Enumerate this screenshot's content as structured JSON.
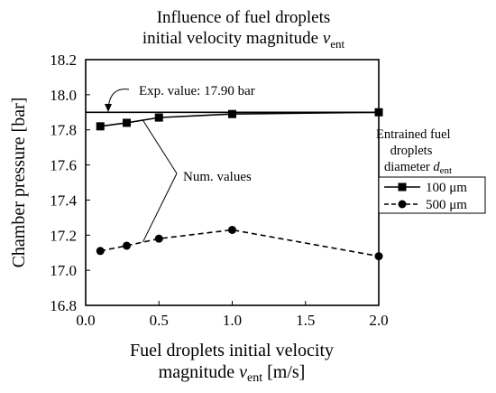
{
  "chart_data": {
    "type": "line",
    "title_line1": "Influence of fuel droplets",
    "title_line2_prefix": "initial velocity magnitude ",
    "title_line2_var": "v",
    "title_line2_sub": "ent",
    "xlabel_line1": "Fuel droplets initial velocity",
    "xlabel_line2_prefix": "magnitude ",
    "xlabel_var": "v",
    "xlabel_sub": "ent",
    "xlabel_unit": " [m/s]",
    "ylabel": "Chamber pressure [bar]",
    "xlim": [
      0.0,
      2.0
    ],
    "ylim": [
      16.8,
      18.2
    ],
    "x_ticks": [
      "0.0",
      "0.5",
      "1.0",
      "1.5",
      "2.0"
    ],
    "y_ticks": [
      "16.8",
      "17.0",
      "17.2",
      "17.4",
      "17.6",
      "17.8",
      "18.0",
      "18.2"
    ],
    "grid": false,
    "series": [
      {
        "name": "100 μm",
        "marker": "square",
        "line": "solid",
        "x": [
          0.1,
          0.28,
          0.5,
          1.0,
          2.0
        ],
        "y": [
          17.82,
          17.84,
          17.87,
          17.89,
          17.9
        ]
      },
      {
        "name": "500 μm",
        "marker": "circle",
        "line": "dashed",
        "x": [
          0.1,
          0.28,
          0.5,
          1.0,
          2.0
        ],
        "y": [
          17.11,
          17.14,
          17.18,
          17.23,
          17.08
        ]
      }
    ],
    "reference_line": {
      "y": 17.9,
      "label": "Exp. value: 17.90 bar"
    },
    "annotation": "Num. values",
    "legend_title_line1": "Entrained fuel",
    "legend_title_line2": "droplets",
    "legend_title_line3_prefix": "diameter ",
    "legend_title_var": "d",
    "legend_title_sub": "ent",
    "legend_placement": "right"
  }
}
